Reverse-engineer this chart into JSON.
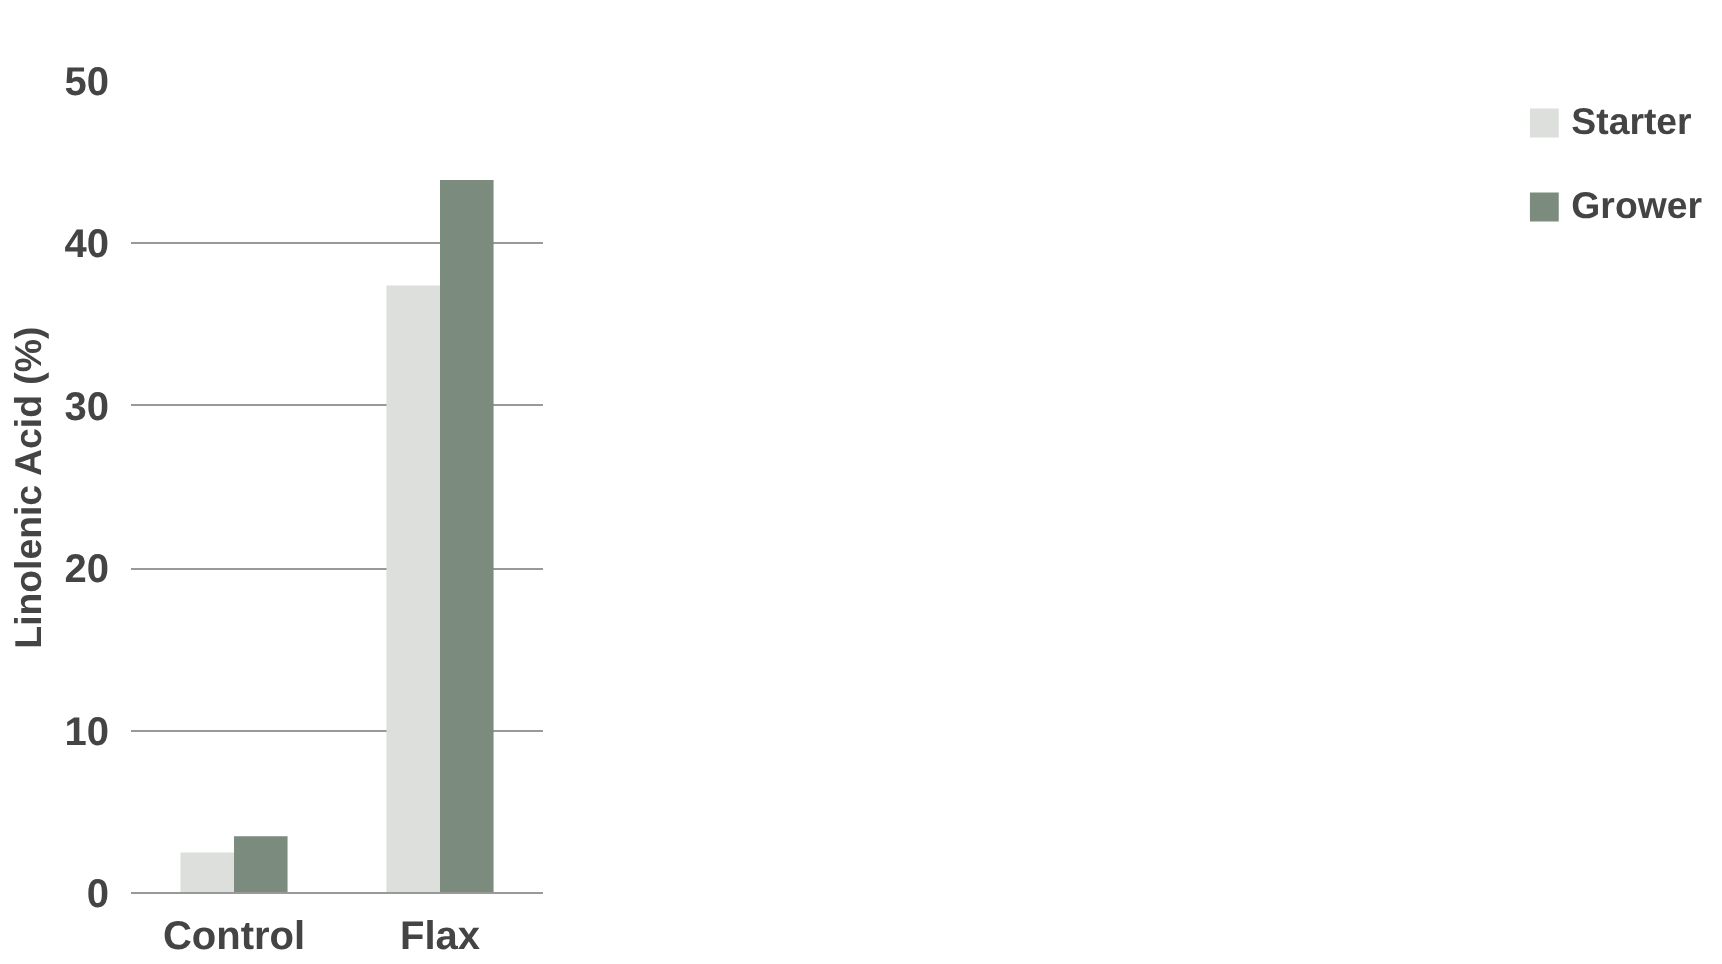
{
  "chart_data": {
    "type": "bar",
    "ylabel": "Linolenic Acid (%)",
    "categories": [
      "Control",
      "Flax"
    ],
    "series": [
      {
        "name": "Starter",
        "color": "#dcdfdc",
        "values": [
          2.5,
          37.4
        ]
      },
      {
        "name": "Grower",
        "color": "#7b8b7e",
        "values": [
          3.5,
          43.9
        ]
      }
    ],
    "ylim": [
      0,
      50
    ],
    "yticks": [
      0,
      10,
      20,
      30,
      40,
      50
    ],
    "grid": "y",
    "legend": "right"
  }
}
